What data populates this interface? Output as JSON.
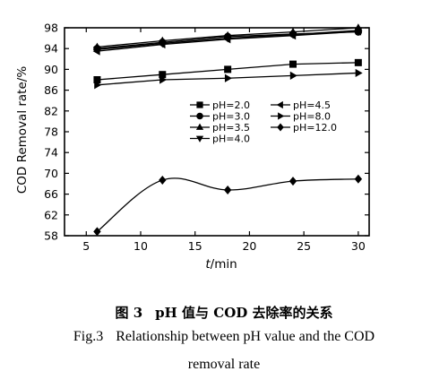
{
  "chart_data": {
    "type": "line",
    "xlabel_var": "t",
    "xlabel_unit": "/min",
    "ylabel": "COD Removal rate/%",
    "xlim": [
      3,
      31
    ],
    "ylim": [
      58,
      98
    ],
    "x_ticks": [
      5,
      10,
      15,
      20,
      25,
      30
    ],
    "y_ticks": [
      58,
      62,
      66,
      70,
      74,
      78,
      82,
      86,
      90,
      94,
      98
    ],
    "grid": false,
    "legend": "center-right",
    "series": [
      {
        "name": "pH=2.0",
        "marker": "square",
        "x": [
          6,
          12,
          18,
          24,
          30
        ],
        "y": [
          88,
          89,
          90,
          91,
          91.3
        ]
      },
      {
        "name": "pH=3.0",
        "marker": "circle",
        "x": [
          6,
          12,
          18,
          24,
          30
        ],
        "y": [
          94,
          95.2,
          96.3,
          96.8,
          97.2
        ]
      },
      {
        "name": "pH=3.5",
        "marker": "triangle-up",
        "x": [
          6,
          12,
          18,
          24,
          30
        ],
        "y": [
          94.3,
          95.5,
          96.5,
          97.2,
          98
        ]
      },
      {
        "name": "pH=4.0",
        "marker": "triangle-down",
        "x": [
          6,
          12,
          18,
          24,
          30
        ],
        "y": [
          93.8,
          95,
          96,
          96.7,
          97.5
        ]
      },
      {
        "name": "pH=4.5",
        "marker": "triangle-left",
        "x": [
          6,
          12,
          18,
          24,
          30
        ],
        "y": [
          93.5,
          94.8,
          95.8,
          96.5,
          97.3
        ]
      },
      {
        "name": "pH=8.0",
        "marker": "triangle-right",
        "x": [
          6,
          12,
          18,
          24,
          30
        ],
        "y": [
          87,
          88,
          88.3,
          88.8,
          89.3
        ]
      },
      {
        "name": "pH=12.0",
        "marker": "diamond",
        "x": [
          6,
          12,
          18,
          24,
          30
        ],
        "y": [
          58.8,
          68.7,
          66.8,
          68.5,
          68.9
        ],
        "smooth": true
      }
    ]
  },
  "caption": {
    "cn_fig": "图 3",
    "cn_text": "pH 值与 COD 去除率的关系",
    "en_fig": "Fig.3",
    "en_line1": "Relationship between pH value and the COD",
    "en_line2": "removal rate"
  }
}
